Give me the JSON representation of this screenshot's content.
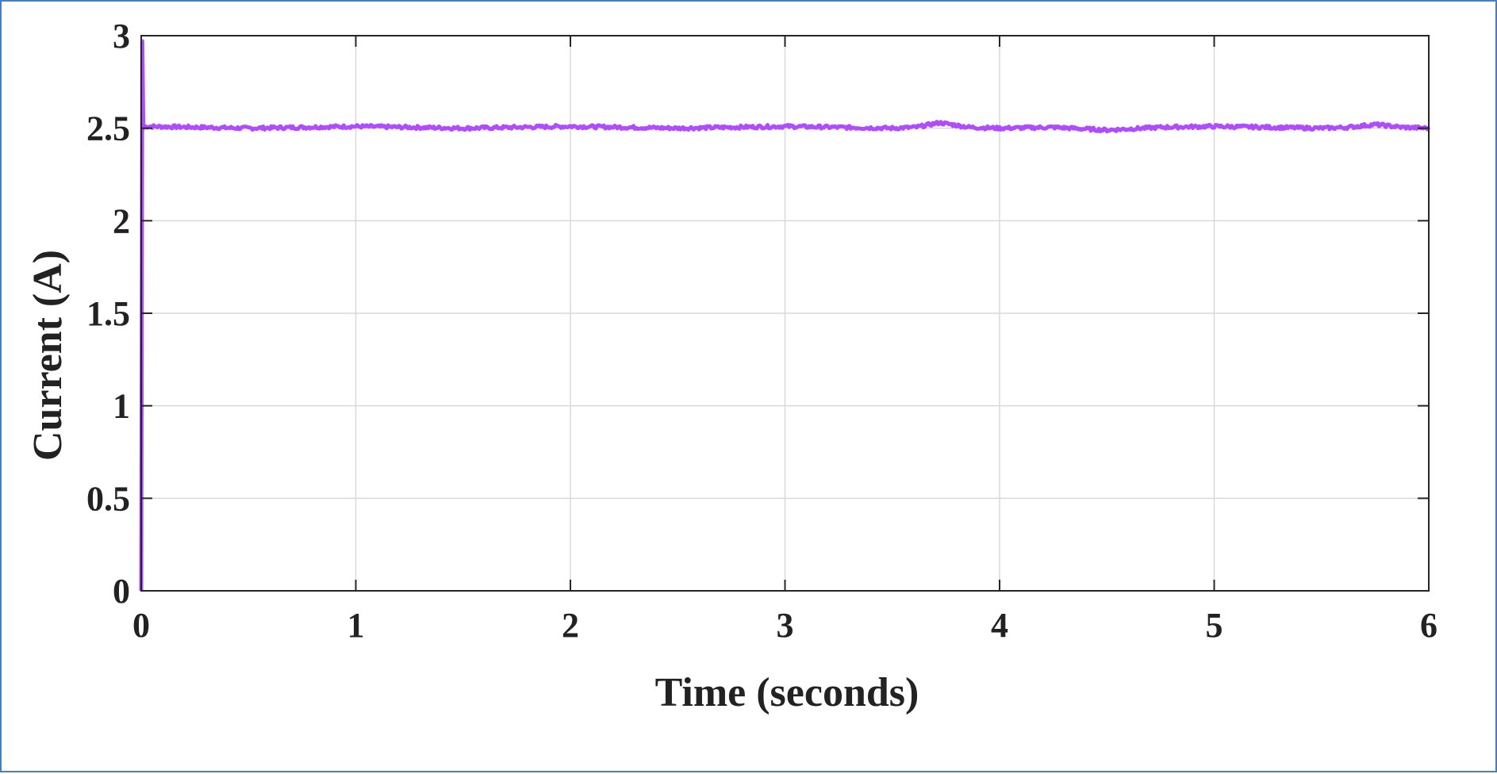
{
  "chart_data": {
    "type": "line",
    "title": "",
    "xlabel": "Time (seconds)",
    "ylabel": "Current (A)",
    "xlim": [
      0,
      6
    ],
    "ylim": [
      0,
      3
    ],
    "x_ticks": [
      0,
      1,
      2,
      3,
      4,
      5,
      6
    ],
    "x_tick_labels": [
      "0",
      "1",
      "2",
      "3",
      "4",
      "5",
      "6"
    ],
    "y_ticks": [
      0,
      0.5,
      1,
      1.5,
      2,
      2.5,
      3
    ],
    "y_tick_labels": [
      "0",
      "0.5",
      "1",
      "1.5",
      "2",
      "2.5",
      "3"
    ],
    "grid": true,
    "legend": "none",
    "series": [
      {
        "color": "#b04bff",
        "x": [
          0,
          0.005,
          0.01,
          0.02,
          0.5,
          1,
          1.5,
          2,
          2.5,
          3,
          3.5,
          3.72,
          4,
          4.5,
          5,
          5.5,
          5.75,
          6
        ],
        "y": [
          0,
          2.97,
          2.5,
          2.51,
          2.5,
          2.51,
          2.5,
          2.51,
          2.5,
          2.51,
          2.5,
          2.53,
          2.5,
          2.49,
          2.51,
          2.5,
          2.52,
          2.5
        ]
      }
    ]
  }
}
